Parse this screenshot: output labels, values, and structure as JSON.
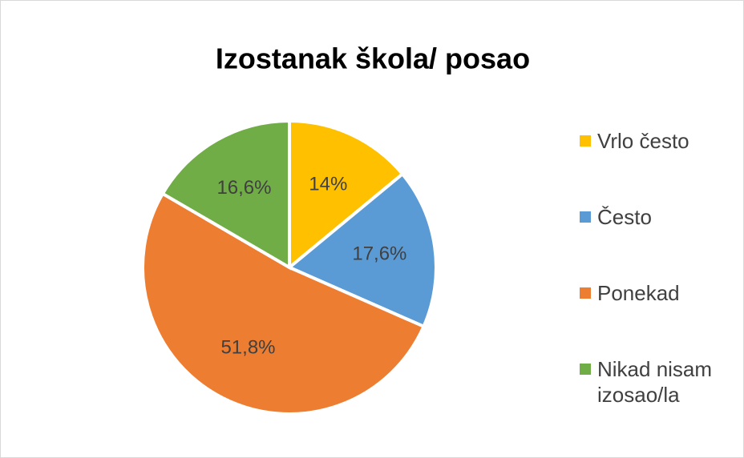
{
  "chart_data": {
    "type": "pie",
    "title": "Izostanak škola/ posao",
    "categories": [
      "Vrlo često",
      "Često",
      "Ponekad",
      "Nikad nisam izosao/la"
    ],
    "values": [
      14,
      17.6,
      51.8,
      16.6
    ],
    "value_labels": [
      "14%",
      "17,6%",
      "51,8%",
      "16,6%"
    ],
    "colors": [
      "#ffc000",
      "#5b9bd5",
      "#ed7d31",
      "#70ad47"
    ],
    "legend": "right"
  }
}
